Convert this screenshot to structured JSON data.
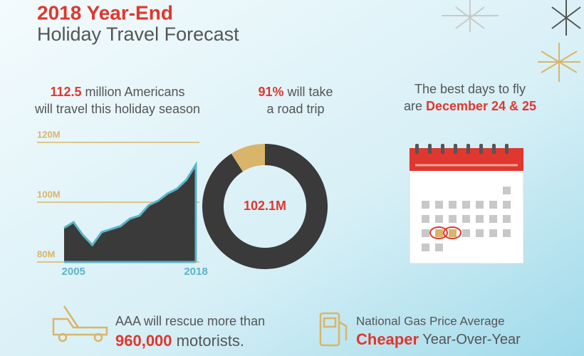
{
  "header": {
    "title": "2018 Year-End",
    "subtitle": "Holiday Travel Forecast"
  },
  "stats": [
    {
      "highlight": "112.5",
      "text": "million Americans",
      "line2": "will travel this holiday season"
    },
    {
      "highlight": "91%",
      "text": "will take",
      "line2": "a road trip"
    },
    {
      "line1": "The best days to fly",
      "prefix": "are",
      "highlight": "December 24 & 25"
    }
  ],
  "footer": [
    {
      "line1": "AAA will rescue more than",
      "highlight": "960,000",
      "text": "motorists."
    },
    {
      "line1": "National Gas Price Average",
      "highlight": "Cheaper",
      "text": "Year-Over-Year"
    }
  ],
  "chart_data": [
    {
      "type": "area",
      "color": "#3a3a3a",
      "edge_color": "#5ab4c8",
      "x": [
        2004,
        2005,
        2006,
        2007,
        2008,
        2009,
        2010,
        2011,
        2012,
        2013,
        2014,
        2015,
        2016,
        2017,
        2018
      ],
      "values": [
        91.4,
        93.3,
        89,
        85.7,
        90,
        91,
        92,
        94.5,
        95.5,
        99,
        100.5,
        102.9,
        104.5,
        107.5,
        112.5
      ],
      "xlim": [
        2004,
        2018
      ],
      "xticks": [
        2005,
        2018
      ],
      "ylim": [
        80,
        120
      ],
      "yticks": [
        {
          "value": 80,
          "label": "80M"
        },
        {
          "value": 100,
          "label": "100M"
        },
        {
          "value": 120,
          "label": "120M"
        }
      ],
      "grid": true,
      "grid_color": "#d9b56b"
    },
    {
      "type": "pie",
      "donut": true,
      "values": [
        91,
        9
      ],
      "colors": [
        "#3a3a3a",
        "#d9b56b"
      ],
      "center_label": "102.1M"
    }
  ]
}
